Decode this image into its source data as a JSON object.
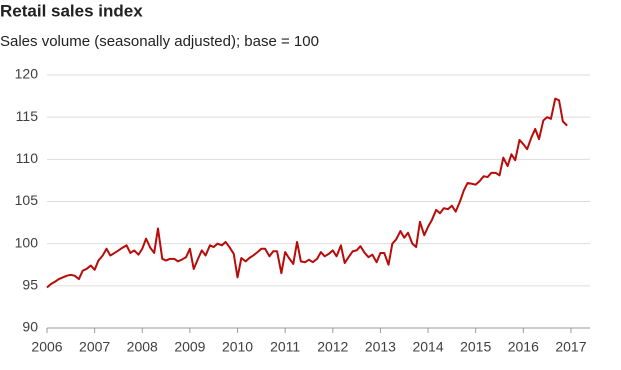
{
  "chart_data": {
    "type": "line",
    "title": "Retail sales index",
    "subtitle": "Sales volume (seasonally adjusted); base = 100",
    "x": [
      2006,
      2006.08,
      2006.17,
      2006.25,
      2006.33,
      2006.42,
      2006.5,
      2006.58,
      2006.67,
      2006.75,
      2006.83,
      2006.92,
      2007,
      2007.08,
      2007.17,
      2007.25,
      2007.33,
      2007.42,
      2007.5,
      2007.58,
      2007.67,
      2007.75,
      2007.83,
      2007.92,
      2008,
      2008.08,
      2008.17,
      2008.25,
      2008.33,
      2008.42,
      2008.5,
      2008.58,
      2008.67,
      2008.75,
      2008.83,
      2008.92,
      2009,
      2009.08,
      2009.17,
      2009.25,
      2009.33,
      2009.42,
      2009.5,
      2009.58,
      2009.67,
      2009.75,
      2009.83,
      2009.92,
      2010,
      2010.08,
      2010.17,
      2010.25,
      2010.33,
      2010.42,
      2010.5,
      2010.58,
      2010.67,
      2010.75,
      2010.83,
      2010.92,
      2011,
      2011.08,
      2011.17,
      2011.25,
      2011.33,
      2011.42,
      2011.5,
      2011.58,
      2011.67,
      2011.75,
      2011.83,
      2011.92,
      2012,
      2012.08,
      2012.17,
      2012.25,
      2012.33,
      2012.42,
      2012.5,
      2012.58,
      2012.67,
      2012.75,
      2012.83,
      2012.92,
      2013,
      2013.08,
      2013.17,
      2013.25,
      2013.33,
      2013.42,
      2013.5,
      2013.58,
      2013.67,
      2013.75,
      2013.83,
      2013.92,
      2014,
      2014.08,
      2014.17,
      2014.25,
      2014.33,
      2014.42,
      2014.5,
      2014.58,
      2014.67,
      2014.75,
      2014.83,
      2014.92,
      2015,
      2015.08,
      2015.17,
      2015.25,
      2015.33,
      2015.42,
      2015.5,
      2015.58,
      2015.67,
      2015.75,
      2015.83,
      2015.92,
      2016,
      2016.08,
      2016.17,
      2016.25,
      2016.33,
      2016.42,
      2016.5,
      2016.58,
      2016.67,
      2016.75,
      2016.83,
      2016.92
    ],
    "series": [
      {
        "color": "#b80c09",
        "values": [
          94.8,
          95.2,
          95.5,
          95.8,
          96.0,
          96.2,
          96.3,
          96.2,
          95.8,
          96.8,
          97.0,
          97.4,
          96.9,
          98.0,
          98.6,
          99.4,
          98.6,
          98.9,
          99.2,
          99.5,
          99.8,
          98.9,
          99.2,
          98.7,
          99.4,
          100.6,
          99.5,
          98.9,
          101.8,
          98.2,
          98.0,
          98.2,
          98.2,
          97.9,
          98.1,
          98.4,
          99.4,
          97.0,
          98.2,
          99.2,
          98.6,
          99.8,
          99.6,
          100.0,
          99.8,
          100.2,
          99.6,
          98.8,
          96.0,
          98.3,
          97.9,
          98.3,
          98.6,
          99.0,
          99.4,
          99.4,
          98.5,
          99.1,
          99.1,
          96.5,
          99.0,
          98.3,
          97.6,
          100.2,
          97.9,
          97.8,
          98.1,
          97.8,
          98.2,
          99.0,
          98.5,
          98.8,
          99.2,
          98.5,
          99.8,
          97.7,
          98.4,
          99.1,
          99.2,
          99.7,
          98.9,
          98.4,
          98.7,
          97.8,
          98.9,
          98.9,
          97.5,
          100.0,
          100.5,
          101.5,
          100.7,
          101.3,
          100.0,
          99.6,
          102.6,
          101.0,
          102.0,
          102.8,
          104.0,
          103.6,
          104.2,
          104.1,
          104.5,
          103.8,
          105.0,
          106.3,
          107.2,
          107.1,
          107.0,
          107.4,
          108.0,
          107.9,
          108.4,
          108.4,
          108.1,
          110.2,
          109.2,
          110.6,
          109.9,
          112.3,
          111.8,
          111.2,
          112.6,
          113.6,
          112.4,
          114.6,
          115.0,
          114.8,
          117.2,
          117.0,
          114.5,
          114.0
        ]
      }
    ],
    "xlim": [
      2006,
      2017.4
    ],
    "xticks": [
      2006,
      2007,
      2008,
      2009,
      2010,
      2011,
      2012,
      2013,
      2014,
      2015,
      2016,
      2017
    ],
    "ylim": [
      90,
      120
    ],
    "yticks": [
      90,
      95,
      100,
      105,
      110,
      115,
      120
    ],
    "grid": true
  }
}
